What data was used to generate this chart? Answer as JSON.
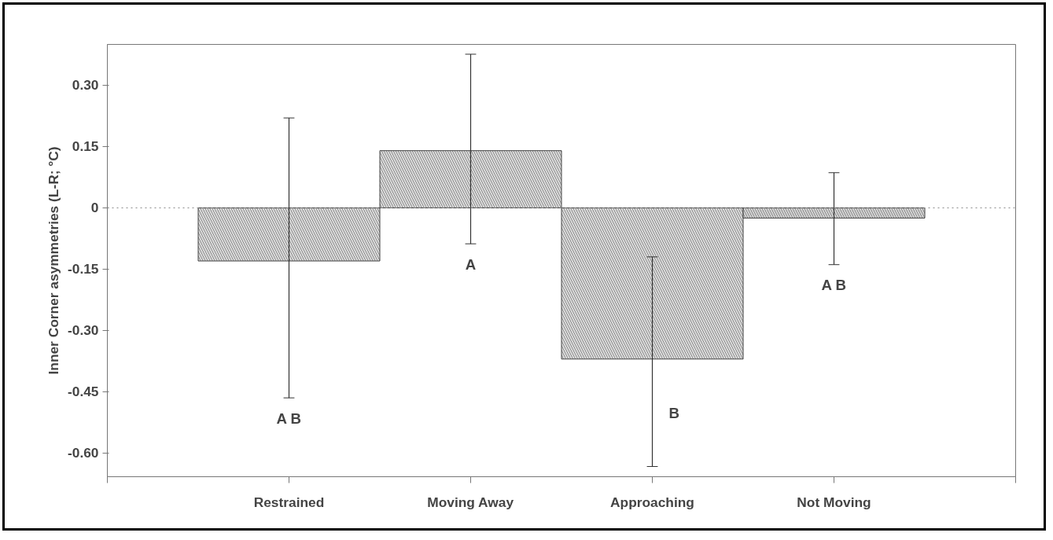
{
  "chart_data": {
    "type": "bar",
    "ylabel": "Inner Corner asymmetries (L-R; °C)",
    "categories": [
      "Restrained",
      "Moving Away",
      "Approaching",
      "Not Moving"
    ],
    "values": [
      -0.13,
      0.14,
      -0.37,
      -0.025
    ],
    "colors": [
      "#dcdcdc",
      "#dcdcdc",
      "#dcdcdc",
      "#d4d4d4"
    ],
    "errors": [
      [
        -0.465,
        0.22
      ],
      [
        -0.088,
        0.376
      ],
      [
        -0.633,
        -0.12
      ],
      [
        -0.139,
        0.086
      ]
    ],
    "ylim": [
      -0.658,
      0.4
    ],
    "yticks": [
      {
        "value": 0.3,
        "label": "0.30"
      },
      {
        "value": 0.15,
        "label": "0.15"
      },
      {
        "value": 0,
        "label": "0"
      },
      {
        "value": -0.15,
        "label": "-0.15"
      },
      {
        "value": -0.3,
        "label": "-0.30"
      },
      {
        "value": -0.45,
        "label": "-0.45"
      },
      {
        "value": -0.6,
        "label": "-0.60"
      }
    ],
    "ref_lines": [
      {
        "axis": "y",
        "value": 0,
        "label": null,
        "color": "#888888",
        "line_style": "dotted"
      }
    ],
    "annotations": [
      "A B",
      "A",
      "B",
      "A B"
    ],
    "grid": false
  }
}
